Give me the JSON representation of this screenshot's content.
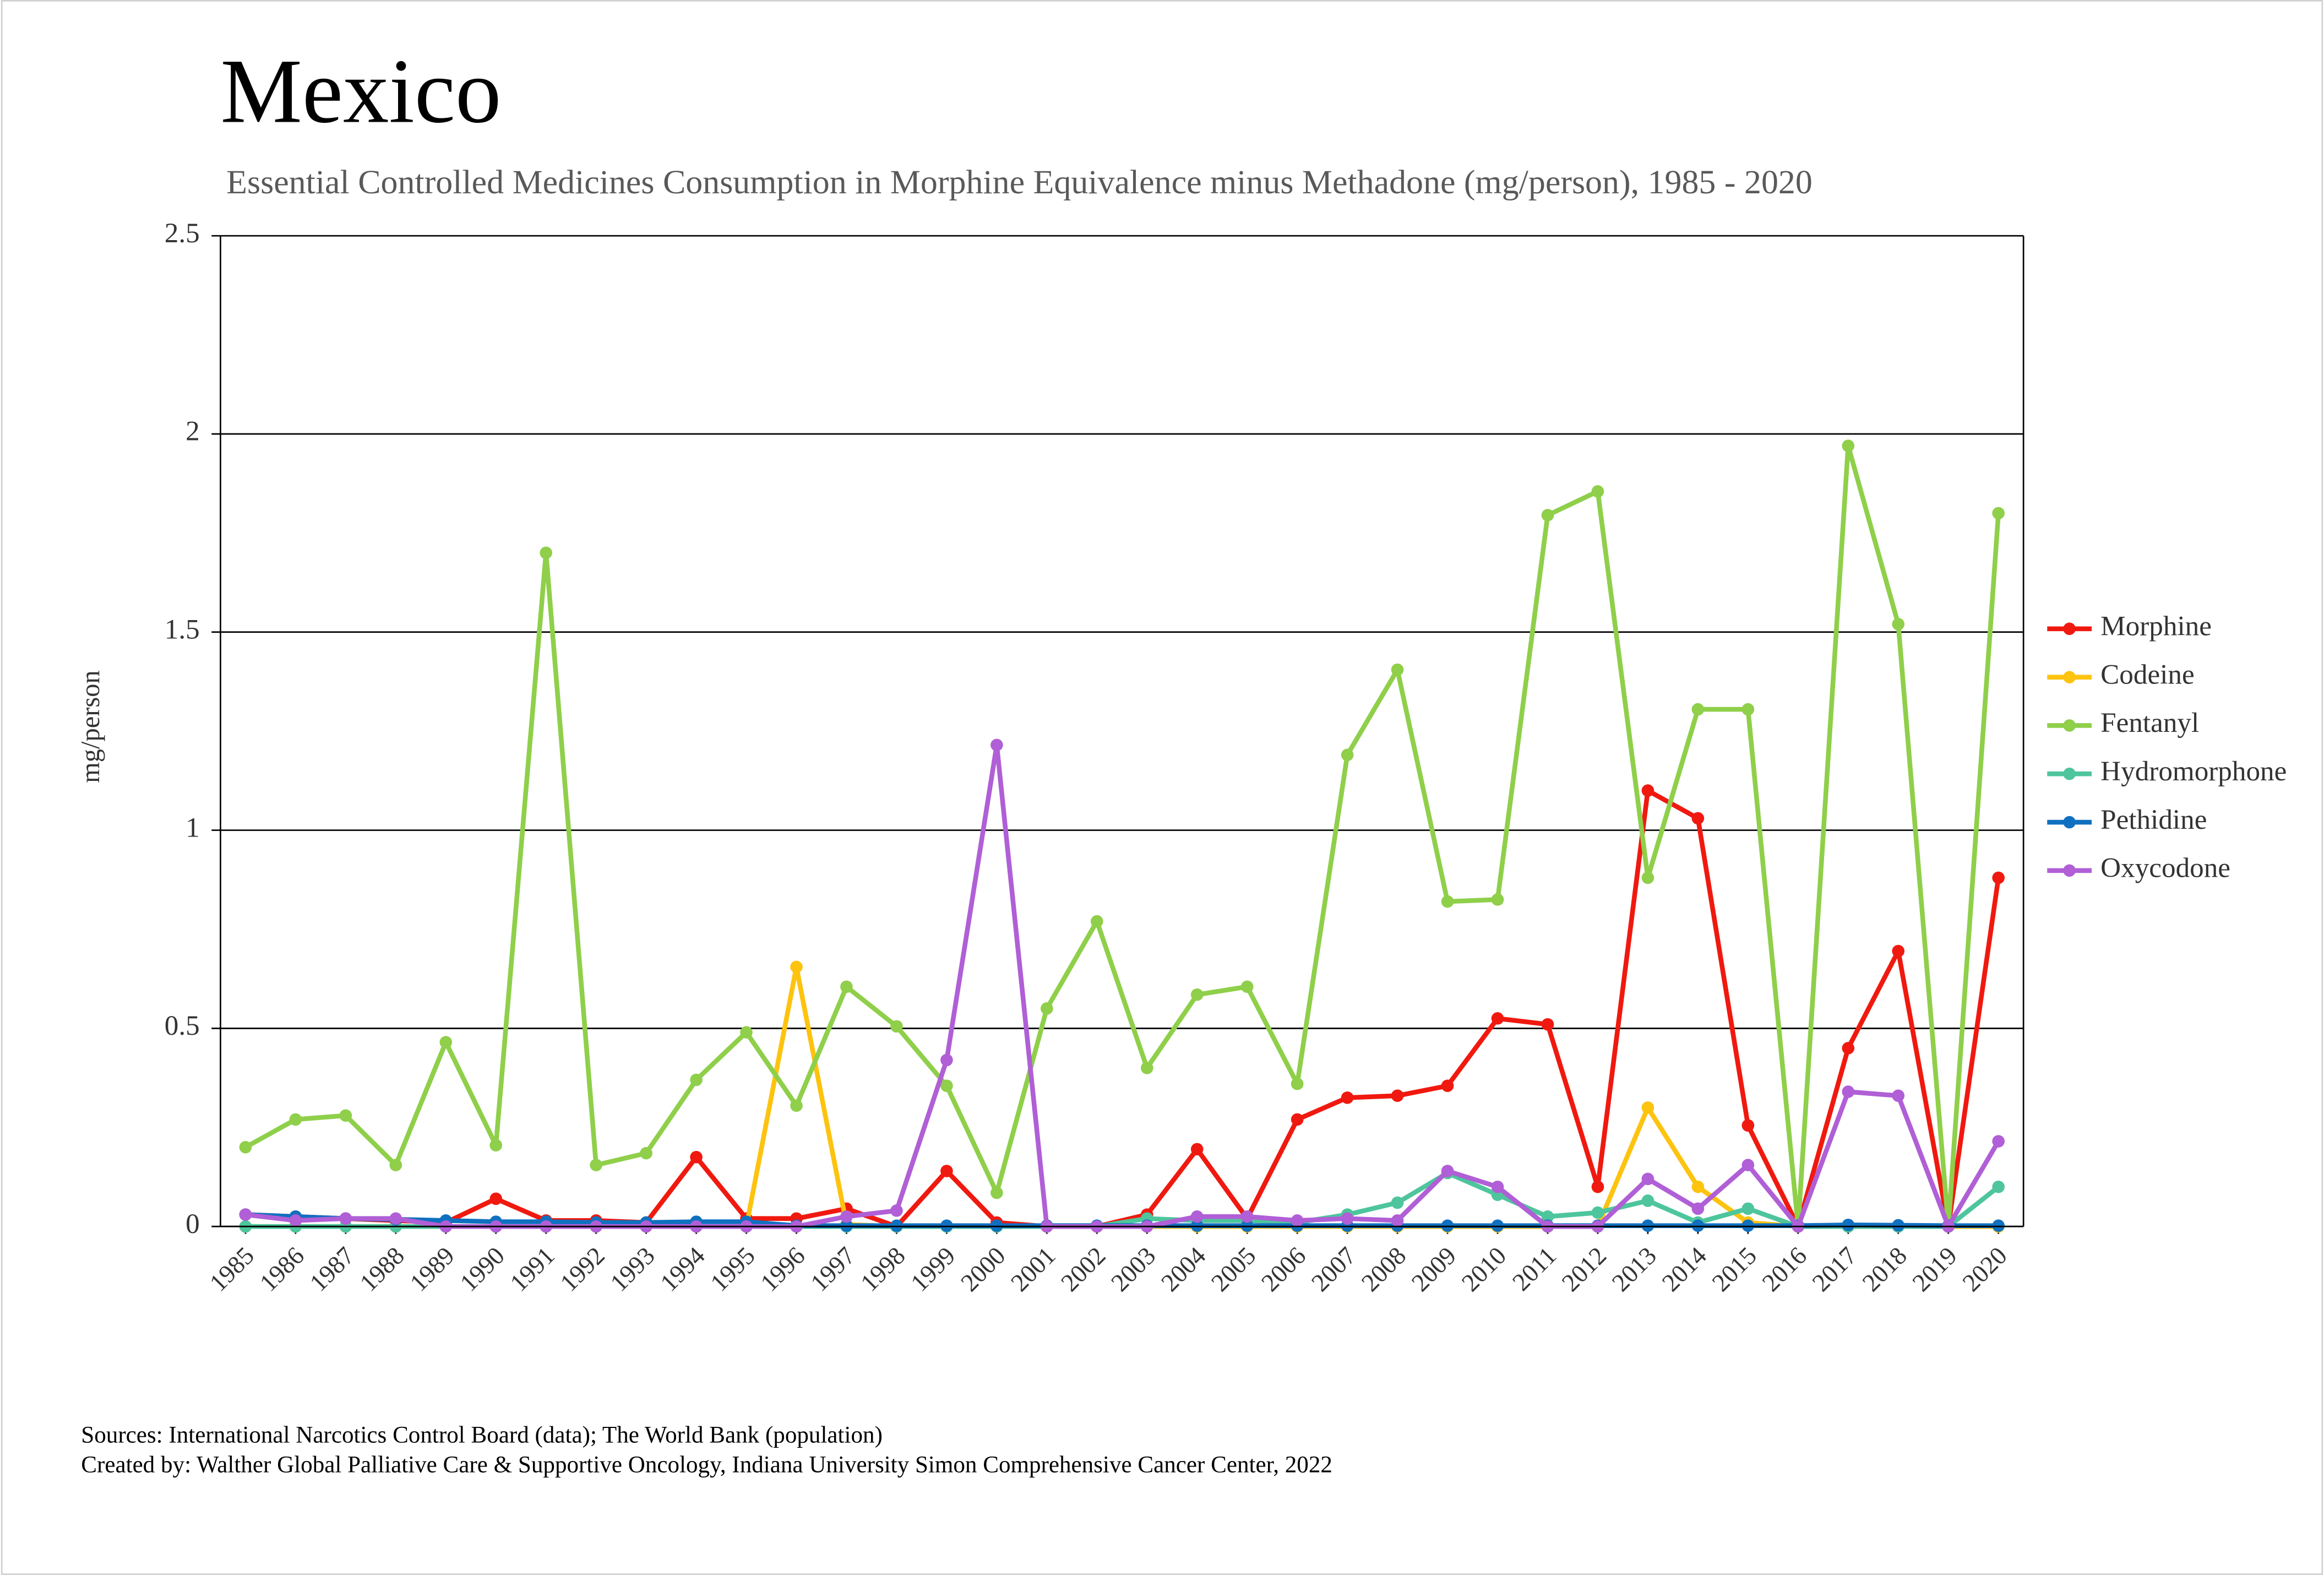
{
  "chart_data": {
    "type": "line",
    "title": "Mexico",
    "subtitle": "Essential Controlled Medicines Consumption in Morphine Equivalence minus Methadone (mg/person), 1985 - 2020",
    "y_label": "mg/person",
    "categories": [
      "1985",
      "1986",
      "1987",
      "1988",
      "1989",
      "1990",
      "1991",
      "1992",
      "1993",
      "1994",
      "1995",
      "1996",
      "1997",
      "1998",
      "1999",
      "2000",
      "2001",
      "2002",
      "2003",
      "2004",
      "2005",
      "2006",
      "2007",
      "2008",
      "2009",
      "2010",
      "2011",
      "2012",
      "2013",
      "2014",
      "2015",
      "2016",
      "2017",
      "2018",
      "2019",
      "2020"
    ],
    "series": [
      {
        "name": "Morphine",
        "color": "#f0190f",
        "values": [
          0.03,
          0.025,
          0.02,
          0.015,
          0.01,
          0.07,
          0.015,
          0.015,
          0.01,
          0.175,
          0.02,
          0.02,
          0.045,
          0,
          0.14,
          0.01,
          0,
          0,
          0.03,
          0.195,
          0.02,
          0.27,
          0.325,
          0.33,
          0.355,
          0.525,
          0.51,
          0.1,
          1.1,
          1.03,
          0.255,
          0,
          0.45,
          0.695,
          0,
          0.88
        ]
      },
      {
        "name": "Codeine",
        "color": "#fdc30f",
        "values": [
          0,
          0,
          0,
          0,
          0,
          0,
          0,
          0,
          0,
          0,
          0,
          0.655,
          0.005,
          0,
          0,
          0,
          0,
          0,
          0,
          0,
          0,
          0,
          0,
          0,
          0,
          0,
          0,
          0,
          0.3,
          0.1,
          0.01,
          0,
          0,
          0,
          0,
          0
        ]
      },
      {
        "name": "Fentanyl",
        "color": "#8fcf4a",
        "values": [
          0.2,
          0.27,
          0.28,
          0.155,
          0.465,
          0.205,
          1.7,
          0.155,
          0.185,
          0.37,
          0.49,
          0.305,
          0.605,
          0.505,
          0.355,
          0.085,
          0.55,
          0.77,
          0.4,
          0.585,
          0.605,
          0.36,
          1.19,
          1.405,
          0.82,
          0.825,
          1.795,
          1.855,
          0.88,
          1.305,
          1.305,
          0,
          1.97,
          1.52,
          0,
          1.8
        ]
      },
      {
        "name": "Hydromorphone",
        "color": "#4ec59c",
        "values": [
          0,
          0,
          0,
          0,
          0,
          0,
          0,
          0,
          0,
          0,
          0,
          0,
          0,
          0,
          0,
          0,
          0,
          0,
          0.02,
          0.015,
          0.015,
          0.01,
          0.03,
          0.06,
          0.135,
          0.08,
          0.025,
          0.035,
          0.065,
          0.01,
          0.045,
          0,
          0,
          0,
          0,
          0.1
        ]
      },
      {
        "name": "Pethidine",
        "color": "#1070c0",
        "values": [
          0.03,
          0.025,
          0.02,
          0.018,
          0.015,
          0.012,
          0.012,
          0.01,
          0.01,
          0.012,
          0.012,
          0.002,
          0.002,
          0.002,
          0.002,
          0.002,
          0.002,
          0.002,
          0.002,
          0.002,
          0.002,
          0.002,
          0.002,
          0.002,
          0.002,
          0.002,
          0.002,
          0.002,
          0.002,
          0.002,
          0.002,
          0.002,
          0.004,
          0.003,
          0.002,
          0.002
        ]
      },
      {
        "name": "Oxycodone",
        "color": "#b05fd6",
        "values": [
          0.03,
          0.015,
          0.02,
          0.02,
          0,
          0,
          0,
          0,
          0,
          0,
          0,
          0,
          0.025,
          0.04,
          0.42,
          1.215,
          0,
          0,
          0,
          0.025,
          0.025,
          0.015,
          0.02,
          0.015,
          0.14,
          0.1,
          0,
          0,
          0.12,
          0.045,
          0.155,
          0,
          0.34,
          0.33,
          0,
          0.215
        ]
      }
    ],
    "ylim": [
      0,
      2.5
    ],
    "yticks": [
      0,
      0.5,
      1,
      1.5,
      2,
      2.5
    ],
    "grid": true,
    "legend": "right",
    "source": "Sources: International Narcotics Control Board (data); The World Bank (population)",
    "credit": "Created by: Walther Global Palliative Care & Supportive Oncology, Indiana University Simon Comprehensive Cancer Center, 2022"
  }
}
